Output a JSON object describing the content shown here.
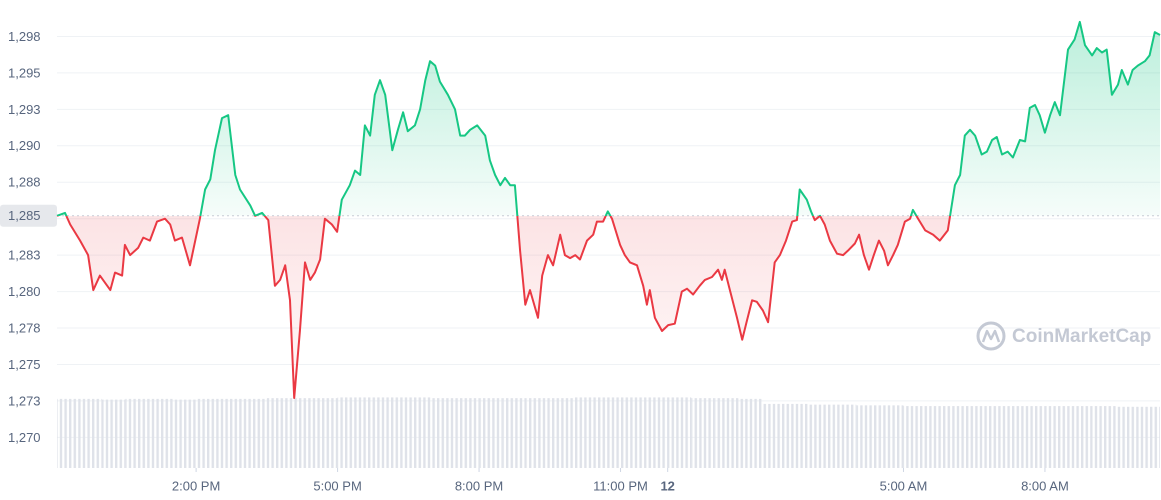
{
  "chart_data": {
    "type": "line",
    "x": [
      11.05,
      11.22,
      11.33,
      11.54,
      11.71,
      11.82,
      11.96,
      12.18,
      12.28,
      12.43,
      12.49,
      12.6,
      12.77,
      12.88,
      13.02,
      13.17,
      13.34,
      13.45,
      13.55,
      13.7,
      13.87,
      14.08,
      14.19,
      14.3,
      14.4,
      14.55,
      14.68,
      14.83,
      14.93,
      15.15,
      15.25,
      15.4,
      15.53,
      15.67,
      15.78,
      15.89,
      15.99,
      16.08,
      16.2,
      16.31,
      16.42,
      16.52,
      16.63,
      16.73,
      16.88,
      16.99,
      17.09,
      17.26,
      17.37,
      17.48,
      17.58,
      17.69,
      17.79,
      17.9,
      18.01,
      18.16,
      18.28,
      18.39,
      18.49,
      18.64,
      18.75,
      18.86,
      18.96,
      19.07,
      19.17,
      19.34,
      19.49,
      19.6,
      19.7,
      19.81,
      19.96,
      20.13,
      20.23,
      20.34,
      20.45,
      20.55,
      20.66,
      20.76,
      20.87,
      20.98,
      21.08,
      21.25,
      21.34,
      21.46,
      21.57,
      21.72,
      21.82,
      21.93,
      22.04,
      22.14,
      22.29,
      22.42,
      22.5,
      22.63,
      22.73,
      22.82,
      22.99,
      23.09,
      23.2,
      23.35,
      23.48,
      23.56,
      23.62,
      23.73,
      23.88,
      24.01,
      24.15,
      24.3,
      24.41,
      24.54,
      24.68,
      24.79,
      24.94,
      25.07,
      25.15,
      25.21,
      25.32,
      25.47,
      25.58,
      25.68,
      25.79,
      25.89,
      26.02,
      26.13,
      26.27,
      26.38,
      26.51,
      26.64,
      26.74,
      26.8,
      26.95,
      27.04,
      27.12,
      27.23,
      27.33,
      27.44,
      27.59,
      27.72,
      27.82,
      27.97,
      28.06,
      28.16,
      28.27,
      28.37,
      28.48,
      28.59,
      28.67,
      28.78,
      28.88,
      29.03,
      29.14,
      29.2,
      29.31,
      29.46,
      29.63,
      29.77,
      29.94,
      30.09,
      30.2,
      30.3,
      30.41,
      30.52,
      30.66,
      30.77,
      30.88,
      30.98,
      31.09,
      31.21,
      31.32,
      31.47,
      31.58,
      31.68,
      31.79,
      31.89,
      32.0,
      32.11,
      32.21,
      32.32,
      32.49,
      32.63,
      32.74,
      32.85,
      33.0,
      33.1,
      33.21,
      33.31,
      33.42,
      33.55,
      33.63,
      33.76,
      33.86,
      33.97,
      34.12,
      34.22,
      34.33,
      34.44
    ],
    "values": [
      1285.2,
      1285.4,
      1284.6,
      1283.5,
      1282.5,
      1280.1,
      1281.1,
      1280.1,
      1281.3,
      1281.1,
      1283.2,
      1282.5,
      1283.0,
      1283.7,
      1283.5,
      1284.8,
      1285.0,
      1284.6,
      1283.5,
      1283.7,
      1281.8,
      1285.0,
      1287.0,
      1287.7,
      1289.7,
      1291.9,
      1292.1,
      1288.0,
      1287.0,
      1285.9,
      1285.2,
      1285.4,
      1284.9,
      1280.4,
      1280.8,
      1281.8,
      1279.4,
      1272.7,
      1277.3,
      1282.0,
      1280.8,
      1281.3,
      1282.2,
      1285.0,
      1284.6,
      1284.1,
      1286.3,
      1287.3,
      1288.3,
      1288.0,
      1291.4,
      1290.7,
      1293.5,
      1294.5,
      1293.5,
      1289.7,
      1291.1,
      1292.3,
      1291.0,
      1291.4,
      1292.5,
      1294.5,
      1295.8,
      1295.5,
      1294.4,
      1293.5,
      1292.5,
      1290.7,
      1290.7,
      1291.1,
      1291.4,
      1290.7,
      1289.0,
      1288.0,
      1287.3,
      1287.8,
      1287.3,
      1287.3,
      1282.8,
      1279.1,
      1280.1,
      1278.2,
      1281.1,
      1282.5,
      1281.8,
      1283.9,
      1282.5,
      1282.3,
      1282.5,
      1282.2,
      1283.5,
      1283.9,
      1284.8,
      1284.8,
      1285.5,
      1285.0,
      1283.2,
      1282.5,
      1282.0,
      1281.8,
      1280.4,
      1279.1,
      1280.1,
      1278.2,
      1277.3,
      1277.7,
      1277.8,
      1280.0,
      1280.2,
      1279.8,
      1280.4,
      1280.8,
      1281.0,
      1281.5,
      1280.8,
      1281.5,
      1280.1,
      1278.2,
      1276.7,
      1278.0,
      1279.4,
      1279.3,
      1278.7,
      1277.9,
      1282.0,
      1282.5,
      1283.5,
      1284.8,
      1284.9,
      1287.0,
      1286.3,
      1285.5,
      1284.9,
      1285.2,
      1284.6,
      1283.5,
      1282.6,
      1282.5,
      1282.8,
      1283.3,
      1283.9,
      1282.5,
      1281.5,
      1282.5,
      1283.5,
      1282.8,
      1281.8,
      1282.5,
      1283.2,
      1284.8,
      1285.0,
      1285.6,
      1285.0,
      1284.2,
      1283.9,
      1283.5,
      1284.2,
      1287.3,
      1288.0,
      1290.7,
      1291.1,
      1290.7,
      1289.4,
      1289.6,
      1290.4,
      1290.6,
      1289.4,
      1289.6,
      1289.2,
      1290.4,
      1290.3,
      1292.6,
      1292.8,
      1292.1,
      1290.9,
      1292.1,
      1293.0,
      1292.1,
      1296.6,
      1297.3,
      1298.5,
      1296.9,
      1296.2,
      1296.7,
      1296.4,
      1296.6,
      1293.5,
      1294.2,
      1295.2,
      1294.2,
      1295.2,
      1295.5,
      1295.8,
      1296.2,
      1297.8,
      1297.6
    ],
    "baseline": 1285.2,
    "up_color": "#16c784",
    "down_color": "#ea3943",
    "xlim": [
      11.05,
      34.44
    ],
    "ylim": [
      1267.9,
      1300
    ],
    "xticks": [
      {
        "value": 14,
        "label": "2:00 PM"
      },
      {
        "value": 17,
        "label": "5:00 PM"
      },
      {
        "value": 20,
        "label": "8:00 PM"
      },
      {
        "value": 23,
        "label": "11:00 PM"
      },
      {
        "value": 24,
        "label": "12"
      },
      {
        "value": 29,
        "label": "5:00 AM"
      },
      {
        "value": 32,
        "label": "8:00 AM"
      }
    ],
    "yticks": [
      {
        "value": 1270,
        "label": "1,270"
      },
      {
        "value": 1272.5,
        "label": "1,273"
      },
      {
        "value": 1275,
        "label": "1,275"
      },
      {
        "value": 1277.5,
        "label": "1,278"
      },
      {
        "value": 1280,
        "label": "1,280"
      },
      {
        "value": 1282.5,
        "label": "1,283"
      },
      {
        "value": 1285,
        "label": "1,285"
      },
      {
        "value": 1287.5,
        "label": "1,288"
      },
      {
        "value": 1290,
        "label": "1,290"
      },
      {
        "value": 1292.5,
        "label": "1,293"
      },
      {
        "value": 1295,
        "label": "1,295"
      },
      {
        "value": 1297.5,
        "label": "1,298"
      }
    ],
    "grid": true,
    "volume": {
      "x": [
        11.25,
        11.75,
        12.25,
        12.75,
        13.25,
        13.75,
        14.25,
        14.75,
        15.25,
        15.75,
        16.25,
        16.75,
        17.25,
        17.75,
        18.25,
        18.75,
        19.25,
        19.75,
        20.25,
        20.75,
        21.25,
        21.75,
        22.25,
        22.75,
        23.25,
        23.75,
        24.25,
        24.75,
        25.25,
        25.75,
        26.25,
        26.75,
        27.25,
        27.75,
        28.25,
        28.75,
        29.25,
        29.75,
        30.25,
        30.75,
        31.25,
        31.75,
        32.25,
        32.75,
        33.25,
        33.75,
        34.25
      ],
      "values": [
        96,
        96,
        95,
        96,
        96,
        95,
        96,
        96,
        96,
        97,
        97,
        97,
        98,
        98,
        98,
        98,
        97,
        97,
        97,
        97,
        97,
        97,
        98,
        98,
        98,
        98,
        98,
        97,
        97,
        96,
        89,
        89,
        88,
        88,
        87,
        87,
        86,
        86,
        86,
        86,
        86,
        86,
        86,
        86,
        86,
        85,
        85
      ],
      "vlim": [
        0,
        100
      ],
      "color": "#dfe2e9"
    },
    "watermark": "CoinMarketCap"
  }
}
